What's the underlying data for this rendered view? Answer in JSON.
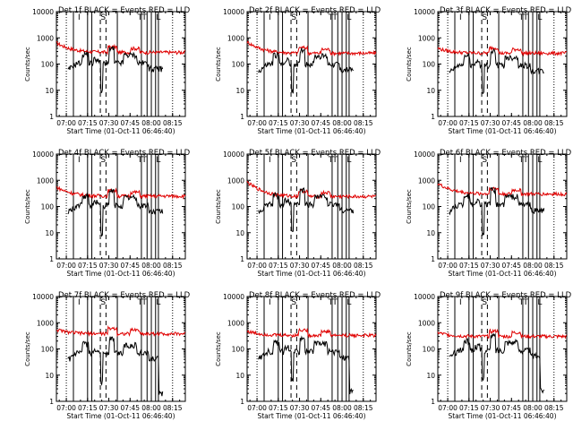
{
  "chart_data": {
    "type": "line",
    "layout": "3x3 grid",
    "yscale": "log",
    "ylim": [
      1,
      10000
    ],
    "ylabel": "Counts/sec",
    "xlabel": "Start Time (01-Oct-11 06:46:40)",
    "xlim": [
      "06:53",
      "08:24"
    ],
    "x_ticks": [
      "07:00",
      "07:15",
      "07:30",
      "07:45",
      "08:00",
      "08:15"
    ],
    "y_ticks": [
      "1",
      "10",
      "100",
      "1000",
      "10000"
    ],
    "colors": {
      "events": "#000000",
      "lld": "#e00000",
      "markers": "#000000"
    },
    "marker_letters": [
      {
        "label": "I",
        "time": "07:09"
      },
      {
        "label": "S",
        "time": "07:26"
      },
      {
        "label": "T",
        "time": "07:52"
      },
      {
        "label": "T",
        "time": "07:55"
      },
      {
        "label": "L",
        "time": "08:05"
      }
    ],
    "solid_lines": [
      "07:05",
      "07:15",
      "07:18",
      "07:36",
      "07:53",
      "07:57",
      "08:00",
      "08:03",
      "08:05"
    ],
    "dashed_lines": [
      "07:24",
      "07:28"
    ],
    "dotted_lines": [
      "07:00",
      "08:15"
    ],
    "panels": [
      {
        "title": "Det 1f BLACK = Events RED = LLD",
        "events_level": 110,
        "lld_level": 280,
        "lld_start": 650,
        "events_end_drop": false
      },
      {
        "title": "Det 2f BLACK = Events RED = LLD",
        "events_level": 100,
        "lld_level": 260,
        "lld_start": 700,
        "events_end_drop": false
      },
      {
        "title": "Det 3f BLACK = Events RED = LLD",
        "events_level": 90,
        "lld_level": 260,
        "lld_start": 400,
        "events_end_drop": false
      },
      {
        "title": "Det 4f BLACK = Events RED = LLD",
        "events_level": 110,
        "lld_level": 250,
        "lld_start": 550,
        "events_end_drop": false
      },
      {
        "title": "Det 5f BLACK = Events RED = LLD",
        "events_level": 120,
        "lld_level": 240,
        "lld_start": 850,
        "events_end_drop": false
      },
      {
        "title": "Det 6f BLACK = Events RED = LLD",
        "events_level": 120,
        "lld_level": 300,
        "lld_start": 750,
        "events_end_drop": false
      },
      {
        "title": "Det 7f BLACK = Events RED = LLD",
        "events_level": 70,
        "lld_level": 380,
        "lld_start": 550,
        "events_end_drop": true
      },
      {
        "title": "Det 8f BLACK = Events RED = LLD",
        "events_level": 80,
        "lld_level": 330,
        "lld_start": 480,
        "events_end_drop": true
      },
      {
        "title": "Det 9f BLACK = Events RED = LLD",
        "events_level": 90,
        "lld_level": 300,
        "lld_start": 420,
        "events_end_drop": true
      }
    ]
  }
}
